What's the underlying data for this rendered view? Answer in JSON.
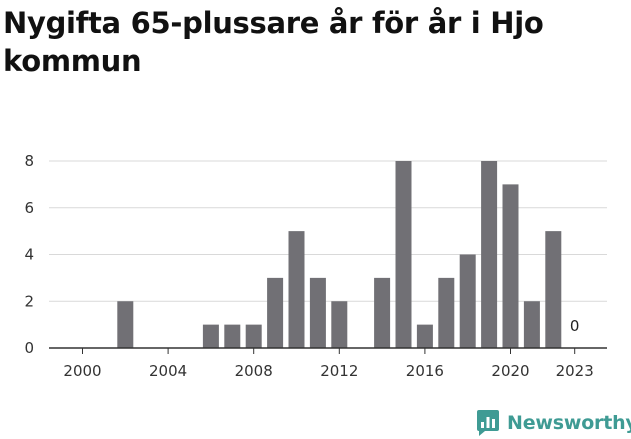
{
  "title": "Nygifta 65-plussare år för år i Hjo kommun",
  "brand": {
    "name": "Newsworthy",
    "icon": "newsworthy-logo-icon",
    "color": "#3f9b94"
  },
  "colors": {
    "bar": "#717075",
    "grid": "#d9d9d9",
    "axis": "#333333"
  },
  "chart_data": {
    "type": "bar",
    "title": "Nygifta 65-plussare år för år i Hjo kommun",
    "xlabel": "",
    "ylabel": "",
    "categories": [
      2000,
      2001,
      2002,
      2003,
      2004,
      2005,
      2006,
      2007,
      2008,
      2009,
      2010,
      2011,
      2012,
      2013,
      2014,
      2015,
      2016,
      2017,
      2018,
      2019,
      2020,
      2021,
      2022,
      2023
    ],
    "values": [
      0,
      0,
      2,
      0,
      0,
      0,
      1,
      1,
      1,
      3,
      5,
      3,
      2,
      0,
      3,
      8,
      1,
      3,
      4,
      8,
      7,
      2,
      5,
      0
    ],
    "ylim": [
      0,
      8
    ],
    "yticks": [
      0,
      2,
      4,
      6,
      8
    ],
    "xticks": [
      "2000",
      "2004",
      "2008",
      "2012",
      "2016",
      "2020",
      "2023"
    ],
    "annotations": [
      {
        "category": 2023,
        "text": "0"
      }
    ],
    "grid": true,
    "legend": "none"
  }
}
